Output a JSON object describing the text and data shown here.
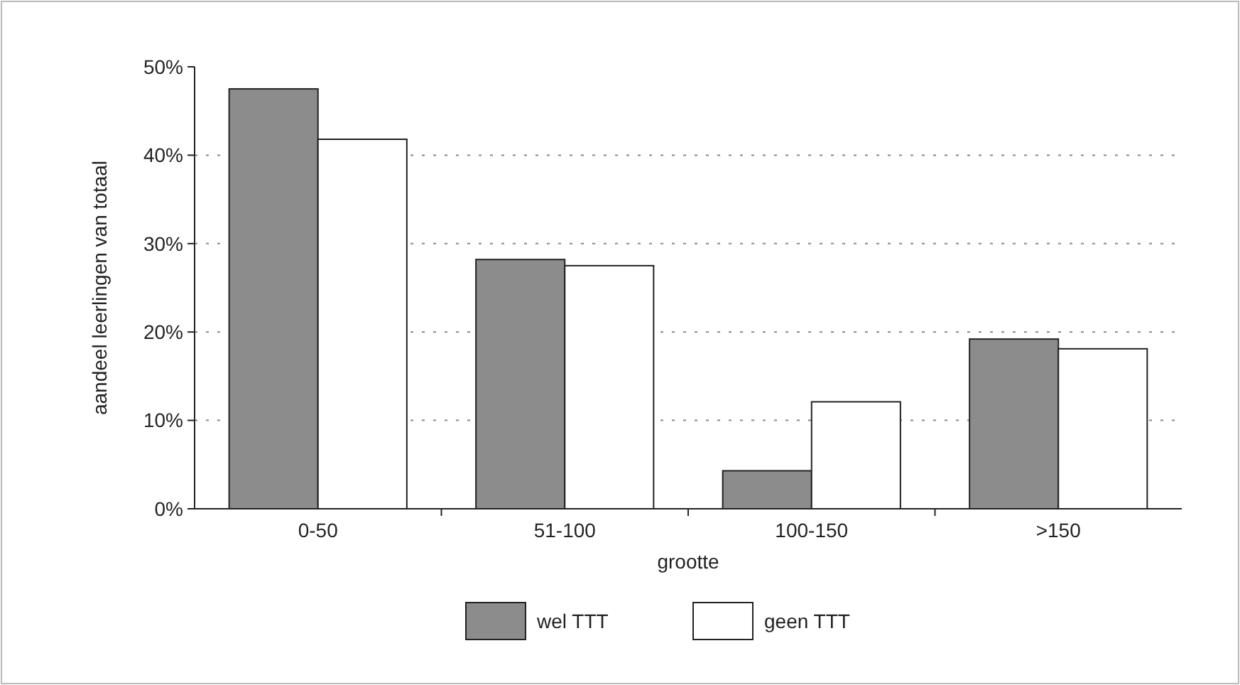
{
  "chart_data": {
    "type": "bar",
    "xlabel": "grootte",
    "ylabel": "aandeel leerlingen van totaal",
    "categories": [
      "0-50",
      "51-100",
      "100-150",
      ">150"
    ],
    "series": [
      {
        "name": "wel TTT",
        "color": "#8c8c8c",
        "values": [
          47.5,
          28.2,
          4.3,
          19.2
        ]
      },
      {
        "name": "geen TTT",
        "color": "#ffffff",
        "values": [
          41.8,
          27.5,
          12.1,
          18.1
        ]
      }
    ],
    "ylim": [
      0,
      50
    ],
    "yticks": [
      {
        "value": 0,
        "label": "0%"
      },
      {
        "value": 10,
        "label": "10%"
      },
      {
        "value": 20,
        "label": "20%"
      },
      {
        "value": 30,
        "label": "30%"
      },
      {
        "value": 40,
        "label": "40%"
      },
      {
        "value": 50,
        "label": "50%"
      }
    ],
    "grid": "y",
    "legend": "bottom"
  }
}
